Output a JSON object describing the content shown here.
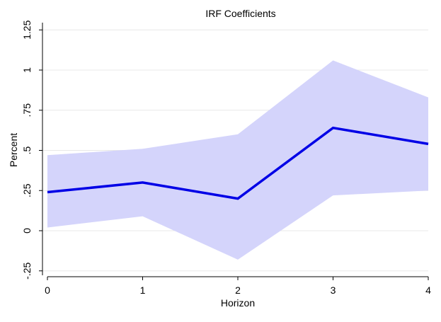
{
  "chart_data": {
    "type": "line",
    "title": "IRF Coefficients",
    "xlabel": "Horizon",
    "ylabel": "Percent",
    "x": [
      0,
      1,
      2,
      3,
      4
    ],
    "series": [
      {
        "values": [
          0.24,
          0.3,
          0.2,
          0.64,
          0.54
        ]
      }
    ],
    "band": {
      "lower": [
        0.02,
        0.09,
        -0.18,
        0.22,
        0.25
      ],
      "upper": [
        0.47,
        0.51,
        0.6,
        1.06,
        0.83
      ]
    },
    "xticks": [
      "0",
      "1",
      "2",
      "3",
      "4"
    ],
    "yticks": [
      "-.25",
      "0",
      ".25",
      ".5",
      ".75",
      "1",
      "1.25"
    ],
    "ytick_values": [
      -0.25,
      0,
      0.25,
      0.5,
      0.75,
      1,
      1.25
    ],
    "xlim": [
      0,
      4
    ],
    "ylim": [
      -0.25,
      1.25
    ],
    "grid": true,
    "colors": {
      "line": "#0000e6",
      "band": "#d4d4fb"
    }
  }
}
